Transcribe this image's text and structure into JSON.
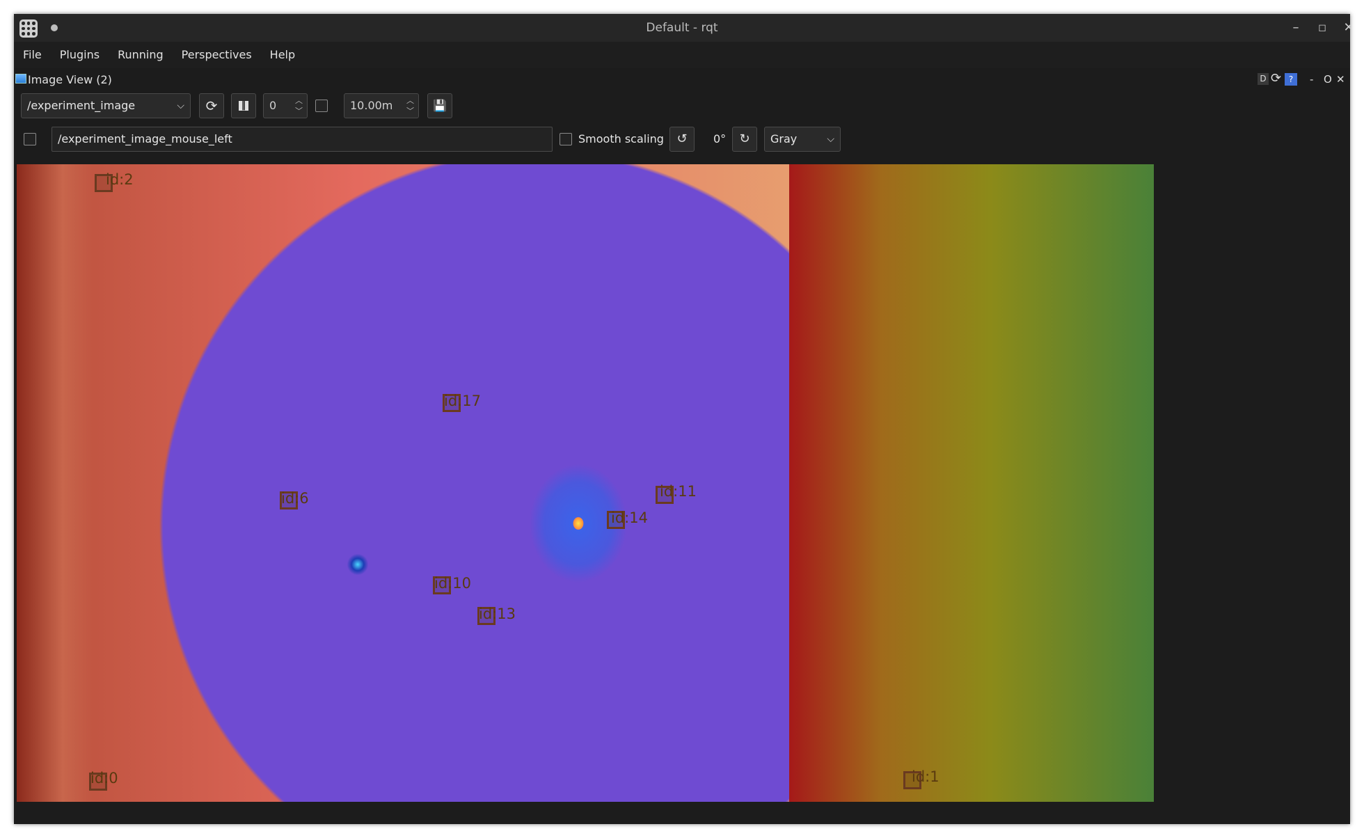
{
  "window": {
    "title": "Default - rqt"
  },
  "menu": {
    "items": [
      "File",
      "Plugins",
      "Running",
      "Perspectives",
      "Help"
    ]
  },
  "dock": {
    "title": "Image View (2)",
    "controls": {
      "d": "D",
      "reload": "⟳",
      "help": "?",
      "minimize": "-",
      "float": "O",
      "close": "✕"
    }
  },
  "toolbar": {
    "topic": "/experiment_image",
    "frame_value": "0",
    "distance_value": "10.00m",
    "mouse_topic": "/experiment_image_mouse_left",
    "smooth_scaling_label": "Smooth scaling",
    "rotation_value": "0°",
    "colormap": "Gray"
  },
  "image": {
    "markers": [
      {
        "label": "id:2"
      },
      {
        "label": "id:17"
      },
      {
        "label": "id:6"
      },
      {
        "label": "id:11"
      },
      {
        "label": "id:14"
      },
      {
        "label": "id:10"
      },
      {
        "label": "id:13"
      },
      {
        "label": "id:0"
      },
      {
        "label": "id:1"
      }
    ]
  }
}
